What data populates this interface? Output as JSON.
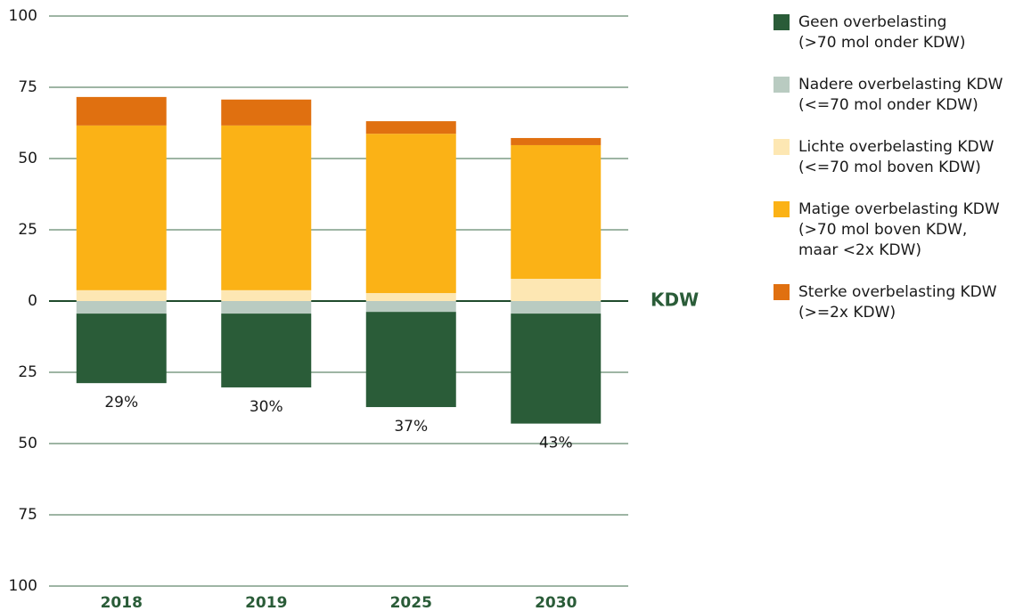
{
  "chart_data": {
    "type": "diverging-stacked-bar",
    "categories": [
      "2018",
      "2019",
      "2025",
      "2030"
    ],
    "series": [
      {
        "name": "Geen overbelasting\n(>70 mol onder KDW)",
        "color": "#2a5c38",
        "values": [
          -24.4,
          -25.9,
          -33.4,
          -38.6
        ]
      },
      {
        "name": "Nadere overbelasting KDW\n(<=70 mol onder KDW)",
        "color": "#b9cbc1",
        "values": [
          -4.4,
          -4.4,
          -3.8,
          -4.4
        ]
      },
      {
        "name": "Lichte overbelasting KDW\n(<=70 mol boven KDW)",
        "color": "#fde7b3",
        "values": [
          3.8,
          3.8,
          2.8,
          7.8
        ]
      },
      {
        "name": "Matige overbelasting KDW\n(>70 mol boven KDW,\nmaar <2x KDW)",
        "color": "#fbb216",
        "values": [
          57.8,
          57.8,
          55.9,
          46.9
        ]
      },
      {
        "name": "Sterke overbelasting KDW\n(>=2x KDW)",
        "color": "#e07010",
        "values": [
          10,
          9.1,
          4.4,
          2.5
        ]
      }
    ],
    "below_totals": [
      29,
      30,
      37,
      43
    ],
    "below_total_labels": [
      "29%",
      "30%",
      "37%",
      "43%"
    ],
    "zero_label": "KDW",
    "ylim": [
      -100,
      100
    ],
    "yticks": [
      {
        "value": -100,
        "label": "100"
      },
      {
        "value": -75,
        "label": "75"
      },
      {
        "value": -50,
        "label": "50"
      },
      {
        "value": -25,
        "label": "25"
      },
      0,
      25,
      50,
      75,
      100
    ],
    "grid": true
  }
}
